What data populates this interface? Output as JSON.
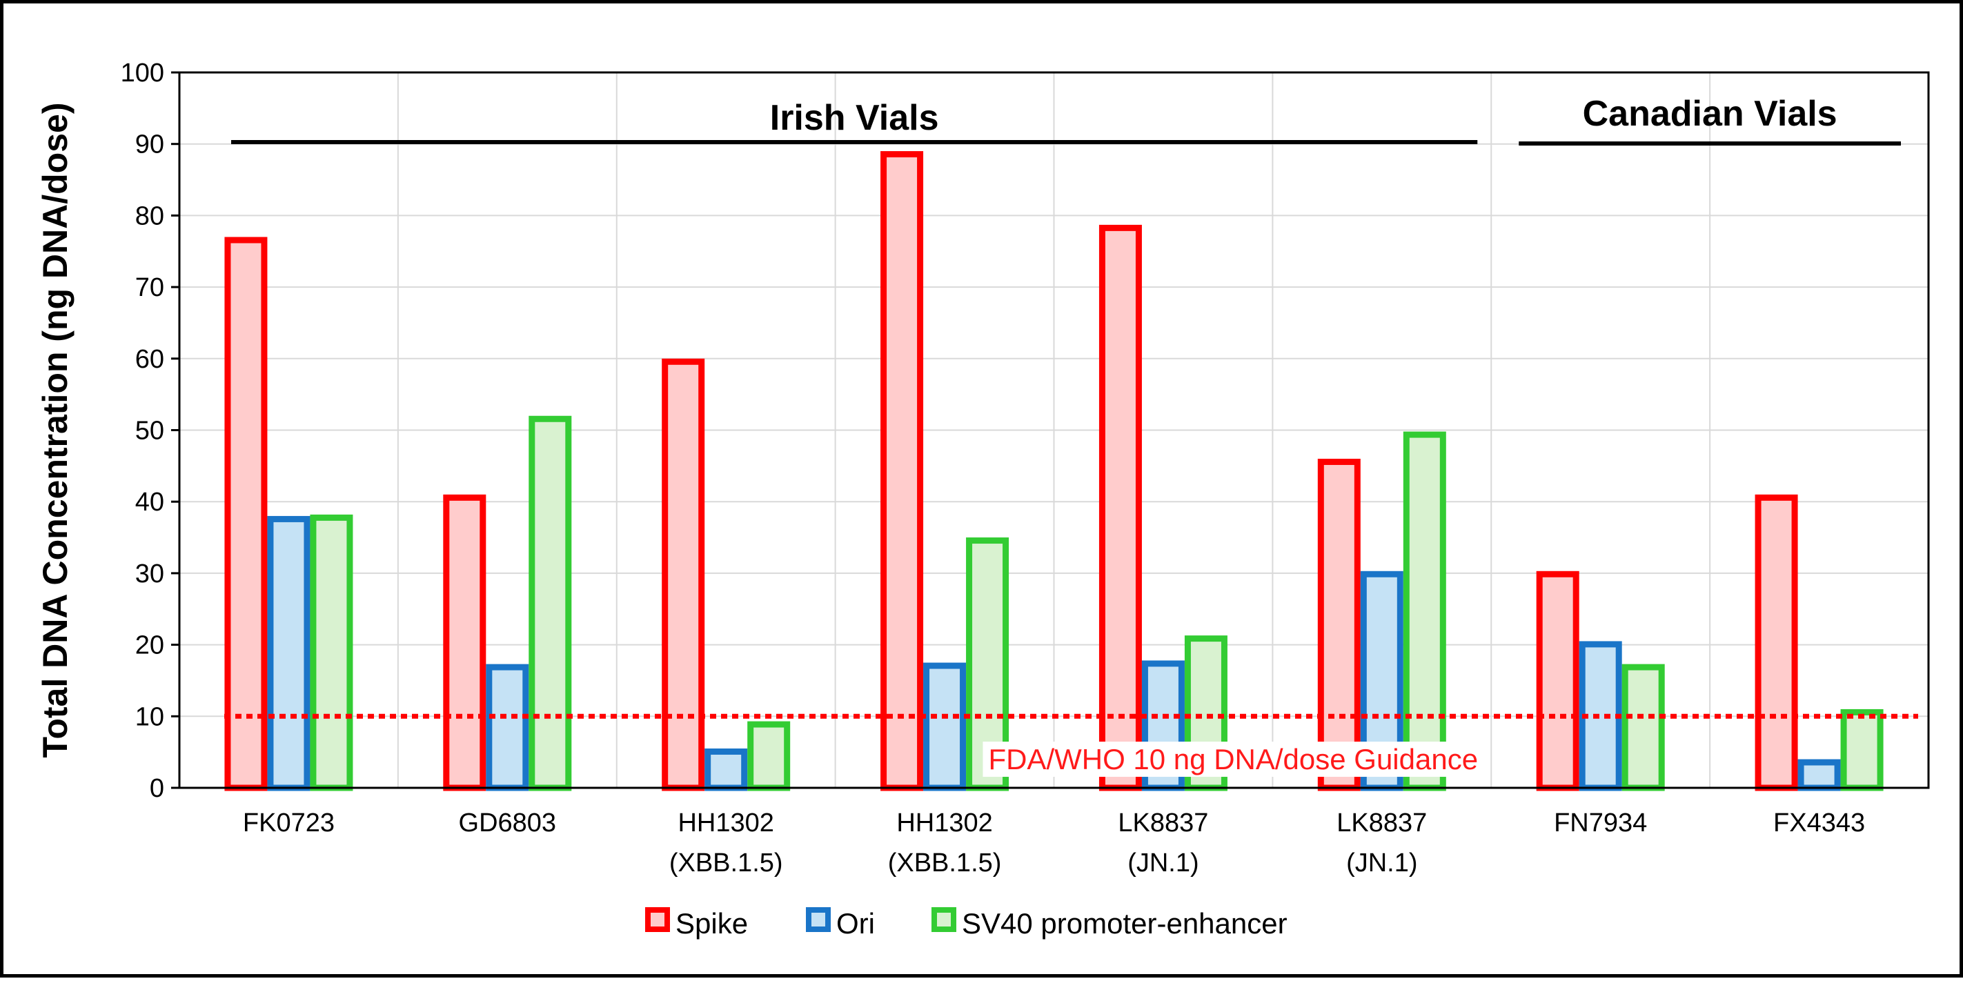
{
  "chart_data": {
    "type": "bar",
    "title": "",
    "xlabel": "",
    "ylabel": "Total DNA Concentration (ng DNA/dose)",
    "ylim": [
      0,
      100
    ],
    "yticks": [
      0,
      10,
      20,
      30,
      40,
      50,
      60,
      70,
      80,
      90,
      100
    ],
    "grid": true,
    "legend_position": "bottom",
    "categories": [
      [
        "FK0723"
      ],
      [
        "GD6803"
      ],
      [
        "HH1302",
        "(XBB.1.5)"
      ],
      [
        "HH1302",
        "(XBB.1.5)"
      ],
      [
        "LK8837",
        "(JN.1)"
      ],
      [
        "LK8837",
        "(JN.1)"
      ],
      [
        "FN7934"
      ],
      [
        "FX4343"
      ]
    ],
    "series": [
      {
        "name": "Spike",
        "stroke": "#ff0000",
        "fill": "#ffcccc",
        "values": [
          77,
          41,
          60,
          89,
          78.7,
          46,
          30.3,
          41
        ]
      },
      {
        "name": "Ori",
        "stroke": "#1a75c8",
        "fill": "#c5e2f5",
        "values": [
          38,
          17.3,
          5.5,
          17.5,
          17.8,
          30.3,
          20.5,
          4
        ]
      },
      {
        "name": "SV40 promoter-enhancer",
        "stroke": "#33cc33",
        "fill": "#d9f2d0",
        "values": [
          38.2,
          52,
          9.3,
          35,
          21.3,
          49.8,
          17.3,
          11
        ]
      }
    ],
    "groups": [
      {
        "label": "Irish Vials",
        "from_category": 0,
        "to_category": 5
      },
      {
        "label": "Canadian Vials",
        "from_category": 6,
        "to_category": 7
      }
    ],
    "reference_line": {
      "value": 10,
      "color": "#ff0000",
      "label": "FDA/WHO 10 ng DNA/dose Guidance"
    }
  }
}
